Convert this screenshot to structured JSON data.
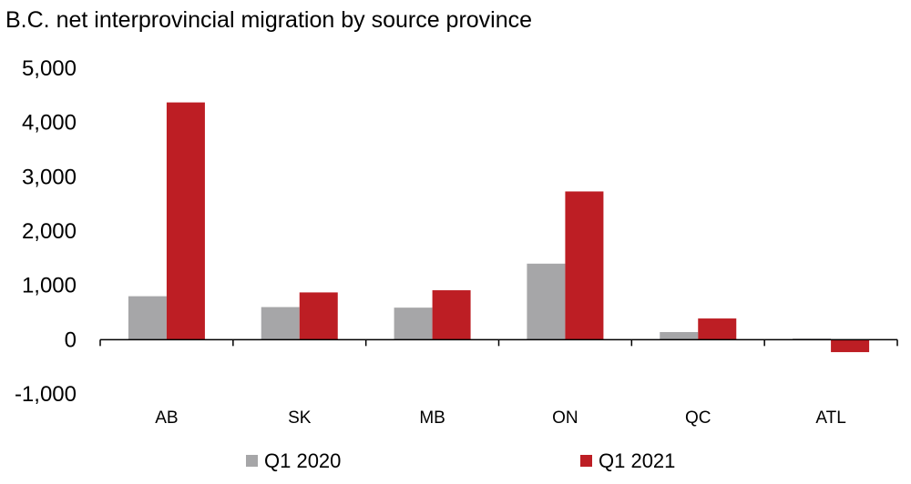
{
  "chart_data": {
    "type": "bar",
    "title": "B.C. net interprovincial migration by source province",
    "xlabel": "",
    "ylabel": "",
    "categories": [
      "AB",
      "SK",
      "MB",
      "ON",
      "QC",
      "ATL"
    ],
    "series": [
      {
        "name": "Q1 2020",
        "color": "#a6a6a8",
        "values": [
          800,
          600,
          590,
          1400,
          140,
          20
        ]
      },
      {
        "name": "Q1 2021",
        "color": "#bd1e24",
        "values": [
          4370,
          870,
          910,
          2730,
          390,
          -230
        ]
      }
    ],
    "ylim": [
      -1000,
      5000
    ],
    "yticks": [
      -1000,
      0,
      1000,
      2000,
      3000,
      4000,
      5000
    ],
    "ytick_labels": [
      "-1,000",
      "0",
      "1,000",
      "2,000",
      "3,000",
      "4,000",
      "5,000"
    ],
    "grid": false,
    "legend": "bottom"
  }
}
